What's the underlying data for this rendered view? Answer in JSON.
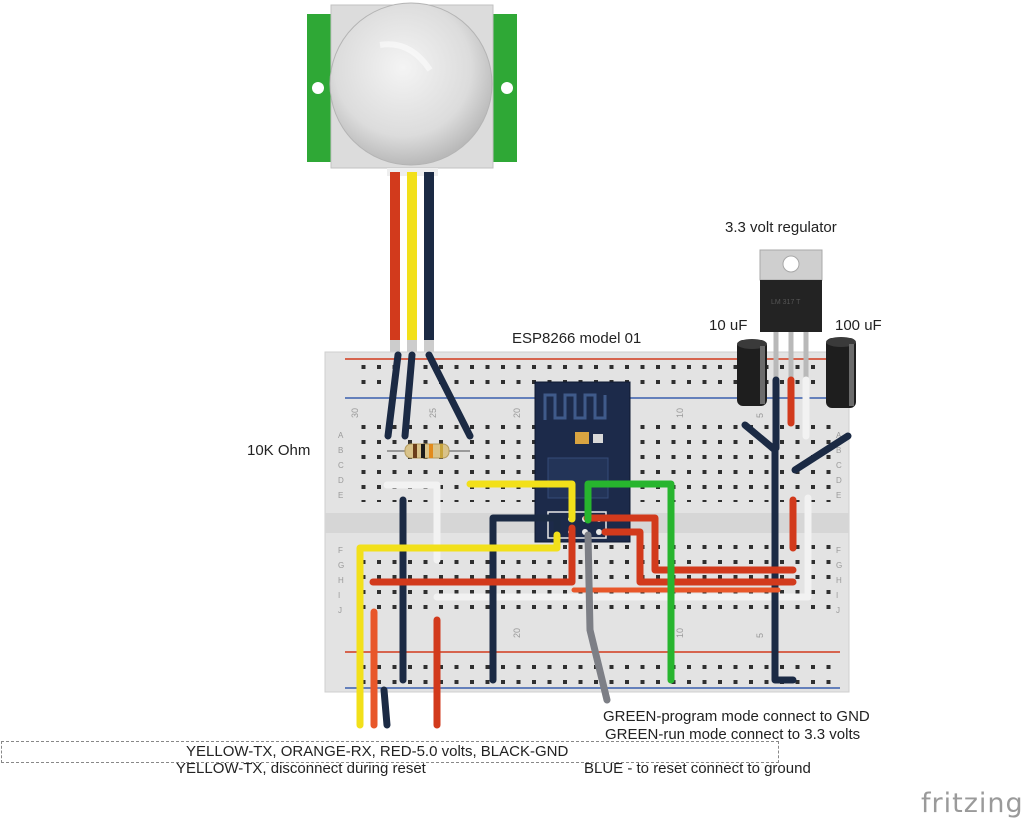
{
  "labels": {
    "regulator": "3.3 volt regulator",
    "cap_left": "10 uF",
    "cap_right": "100 uF",
    "esp": "ESP8266 model 01",
    "resistor": "10K Ohm",
    "green_program": "GREEN-program mode connect to GND",
    "green_run": "GREEN-run mode connect to 3.3 volts",
    "wire_legend": "YELLOW-TX, ORANGE-RX, RED-5.0 volts, BLACK-GND",
    "yellow_note": "YELLOW-TX, disconnect during reset",
    "blue_note": "BLUE - to reset connect to ground"
  },
  "breadboard": {
    "row_letters_top": [
      "A",
      "B",
      "C",
      "D",
      "E"
    ],
    "row_letters_bottom": [
      "F",
      "G",
      "H",
      "I",
      "J"
    ],
    "column_numbers_top": [
      "30",
      "25",
      "20",
      "10",
      "5"
    ],
    "column_numbers_bottom": [
      "20",
      "10",
      "5"
    ]
  },
  "regulator_marking": "LM 317 T",
  "watermark": "fritzing",
  "colors": {
    "yellow": "#f2e01a",
    "orange": "#e8572a",
    "red": "#d23a1c",
    "black": "#1b2a44",
    "green": "#27b52e",
    "white": "#f2f2f2",
    "blue_gray": "#7d7f86",
    "pir_board": "#2fa836",
    "esp_board": "#1c2a4a"
  }
}
